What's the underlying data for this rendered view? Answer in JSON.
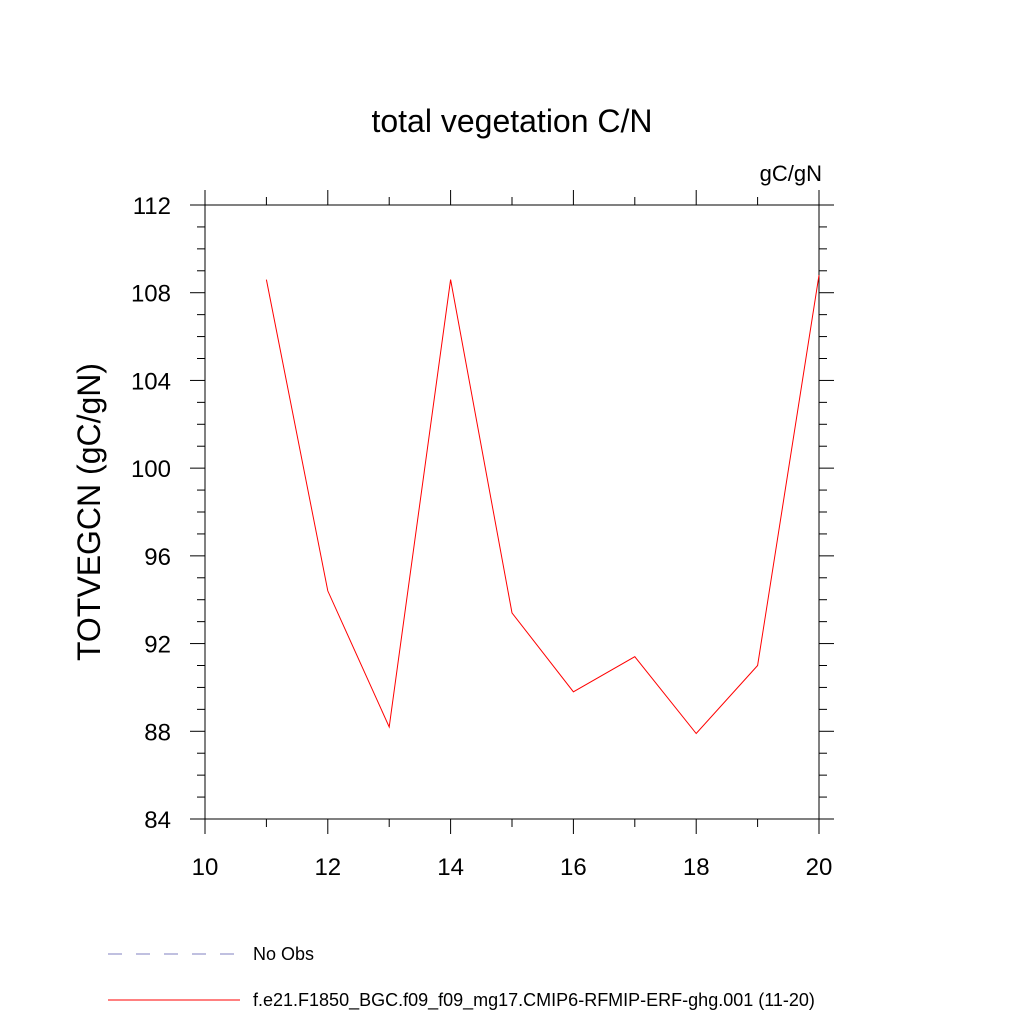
{
  "chart_data": {
    "type": "line",
    "title": "total vegetation C/N",
    "units": "gC/gN",
    "ylabel": "TOTVEGCN  (gC/gN)",
    "xlabel": "",
    "xlim": [
      10,
      20
    ],
    "ylim": [
      84,
      112
    ],
    "xticks": [
      10,
      12,
      14,
      16,
      18,
      20
    ],
    "yticks": [
      84,
      88,
      92,
      96,
      100,
      104,
      108,
      112
    ],
    "x_minor_step": 1,
    "y_minor_step": 1,
    "grid": false,
    "legend_position": "bottom",
    "series": [
      {
        "name": "f.e21.F1850_BGC.f09_f09_mg17.CMIP6-RFMIP-ERF-ghg.001 (11-20)",
        "color": "#ff0000",
        "style": "solid",
        "x": [
          11,
          12,
          13,
          14,
          15,
          16,
          17,
          18,
          19,
          20
        ],
        "y": [
          108.6,
          94.4,
          88.2,
          108.6,
          93.4,
          89.8,
          91.4,
          87.9,
          91.0,
          108.8
        ]
      }
    ],
    "legend": [
      {
        "label": "No Obs",
        "color": "#8080c0",
        "style": "dashed"
      },
      {
        "label": "f.e21.F1850_BGC.f09_f09_mg17.CMIP6-RFMIP-ERF-ghg.001 (11-20)",
        "color": "#ff0000",
        "style": "solid"
      }
    ]
  }
}
